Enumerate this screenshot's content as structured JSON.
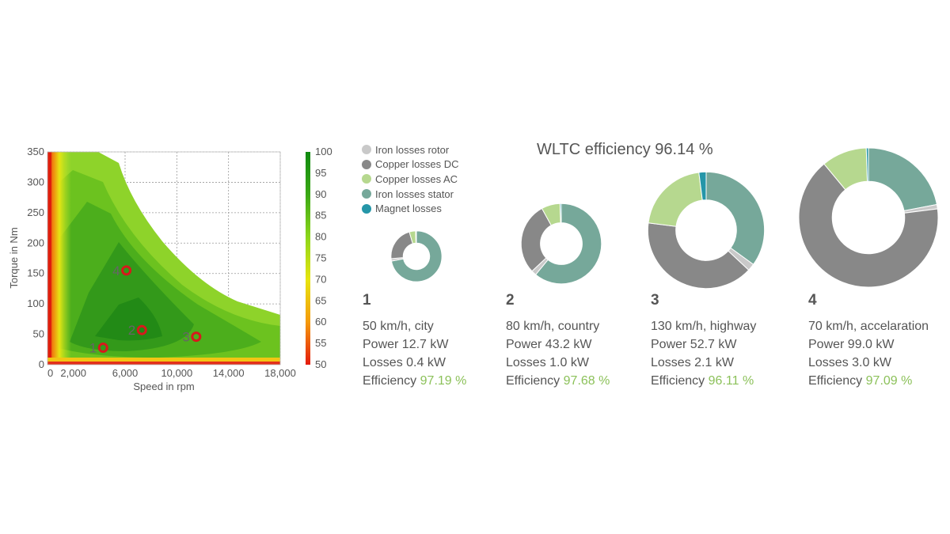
{
  "colors": {
    "iron_losses_rotor": "#c9c9c9",
    "copper_losses_dc": "#888888",
    "copper_losses_ac": "#b6d88f",
    "iron_losses_stator": "#76a89a",
    "magnet_losses": "#2596a8",
    "efficiency_value": "#8cc15a"
  },
  "chart_data": [
    {
      "type": "heatmap",
      "title": "",
      "xlabel": "Speed in rpm",
      "ylabel": "Torque in Nm",
      "xlim": [
        0,
        18000
      ],
      "ylim": [
        0,
        350
      ],
      "x_ticks": [
        "0",
        "2,000",
        "6,000",
        "10,000",
        "14,000",
        "18,000"
      ],
      "x_tick_values": [
        0,
        2000,
        6000,
        10000,
        14000,
        18000
      ],
      "y_ticks": [
        "0",
        "50",
        "100",
        "150",
        "200",
        "250",
        "300",
        "350"
      ],
      "y_tick_values": [
        0,
        50,
        100,
        150,
        200,
        250,
        300,
        350
      ],
      "colorbar": {
        "min": 50,
        "max": 100,
        "ticks": [
          "100",
          "95",
          "90",
          "85",
          "80",
          "75",
          "70",
          "65",
          "60",
          "55",
          "50"
        ],
        "tick_values": [
          100,
          95,
          90,
          85,
          80,
          75,
          70,
          65,
          60,
          55,
          50
        ]
      },
      "grid": true,
      "operating_points": [
        {
          "label": "1",
          "speed": 4300,
          "torque": 28
        },
        {
          "label": "2",
          "speed": 7300,
          "torque": 57
        },
        {
          "label": "3",
          "speed": 11500,
          "torque": 46
        },
        {
          "label": "4",
          "speed": 6100,
          "torque": 155
        }
      ]
    },
    {
      "type": "pie",
      "style": "donut",
      "title": "WLTC efficiency 96.14 %",
      "legend": [
        {
          "name": "Iron losses rotor",
          "color_key": "iron_losses_rotor"
        },
        {
          "name": "Copper losses DC",
          "color_key": "copper_losses_dc"
        },
        {
          "name": "Copper losses AC",
          "color_key": "copper_losses_ac"
        },
        {
          "name": "Iron losses stator",
          "color_key": "iron_losses_stator"
        },
        {
          "name": "Magnet losses",
          "color_key": "magnet_losses"
        }
      ],
      "series_order": [
        "iron_losses_stator",
        "iron_losses_rotor",
        "copper_losses_dc",
        "copper_losses_ac",
        "magnet_losses"
      ],
      "points": [
        {
          "number": "1",
          "scenario": "50 km/h, city",
          "power_text": "Power 12.7 kW",
          "losses_text": "Losses 0.4 kW",
          "efficiency_label": "Efficiency",
          "efficiency_value": "97.19 %",
          "losses_kw": 0.4,
          "shares": {
            "iron_losses_stator": 72,
            "iron_losses_rotor": 1.5,
            "copper_losses_dc": 22,
            "copper_losses_ac": 4,
            "magnet_losses": 0.5
          }
        },
        {
          "number": "2",
          "scenario": "80 km/h, country",
          "power_text": "Power 43.2 kW",
          "losses_text": "Losses 1.0 kW",
          "efficiency_label": "Efficiency",
          "efficiency_value": "97.68 %",
          "losses_kw": 1.0,
          "shares": {
            "iron_losses_stator": 61,
            "iron_losses_rotor": 2,
            "copper_losses_dc": 29,
            "copper_losses_ac": 7.5,
            "magnet_losses": 0.5
          }
        },
        {
          "number": "3",
          "scenario": "130 km/h, highway",
          "power_text": "Power 52.7 kW",
          "losses_text": "Losses 2.1 kW",
          "efficiency_label": "Efficiency",
          "efficiency_value": "96.11 %",
          "losses_kw": 2.1,
          "shares": {
            "iron_losses_stator": 35,
            "iron_losses_rotor": 2,
            "copper_losses_dc": 40,
            "copper_losses_ac": 21,
            "magnet_losses": 2
          }
        },
        {
          "number": "4",
          "scenario": "70 km/h, accelaration",
          "power_text": "Power 99.0 kW",
          "losses_text": "Losses 3.0 kW",
          "efficiency_label": "Efficiency",
          "efficiency_value": "97.09 %",
          "losses_kw": 3.0,
          "shares": {
            "iron_losses_stator": 22,
            "iron_losses_rotor": 1,
            "copper_losses_dc": 66,
            "copper_losses_ac": 10.5,
            "magnet_losses": 0.5
          }
        }
      ]
    }
  ]
}
